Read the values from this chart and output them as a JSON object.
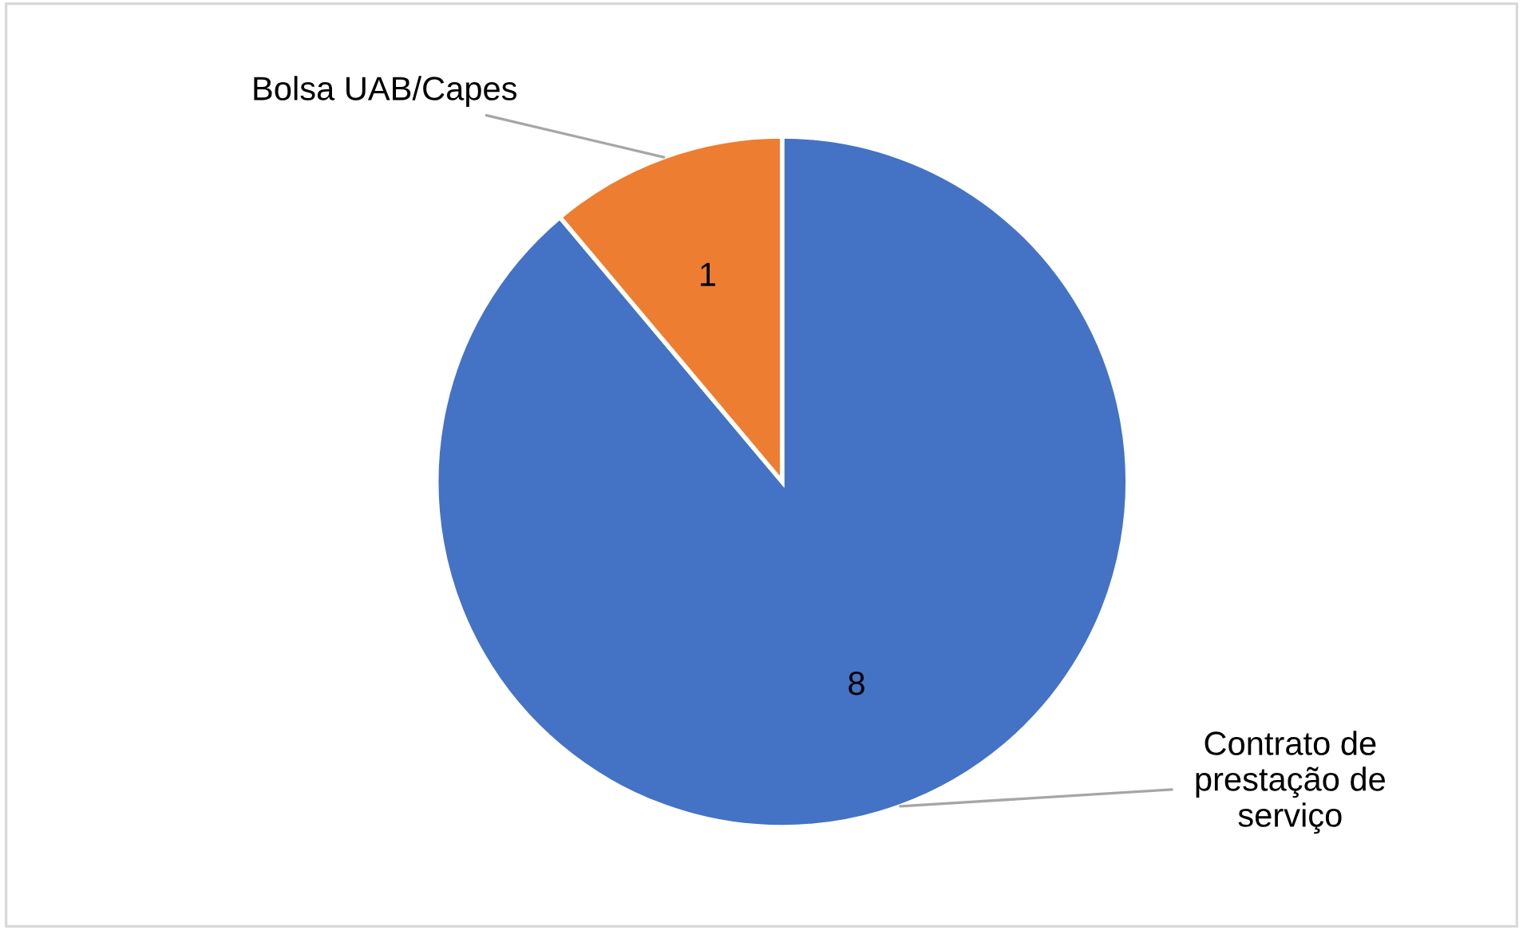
{
  "chart_data": {
    "type": "pie",
    "categories": [
      "Contrato de prestação de serviço",
      "Bolsa UAB/Capes"
    ],
    "values": [
      8,
      1
    ],
    "colors": [
      "#4472c4",
      "#ed7d31"
    ],
    "data_labels": true,
    "legend": false
  }
}
